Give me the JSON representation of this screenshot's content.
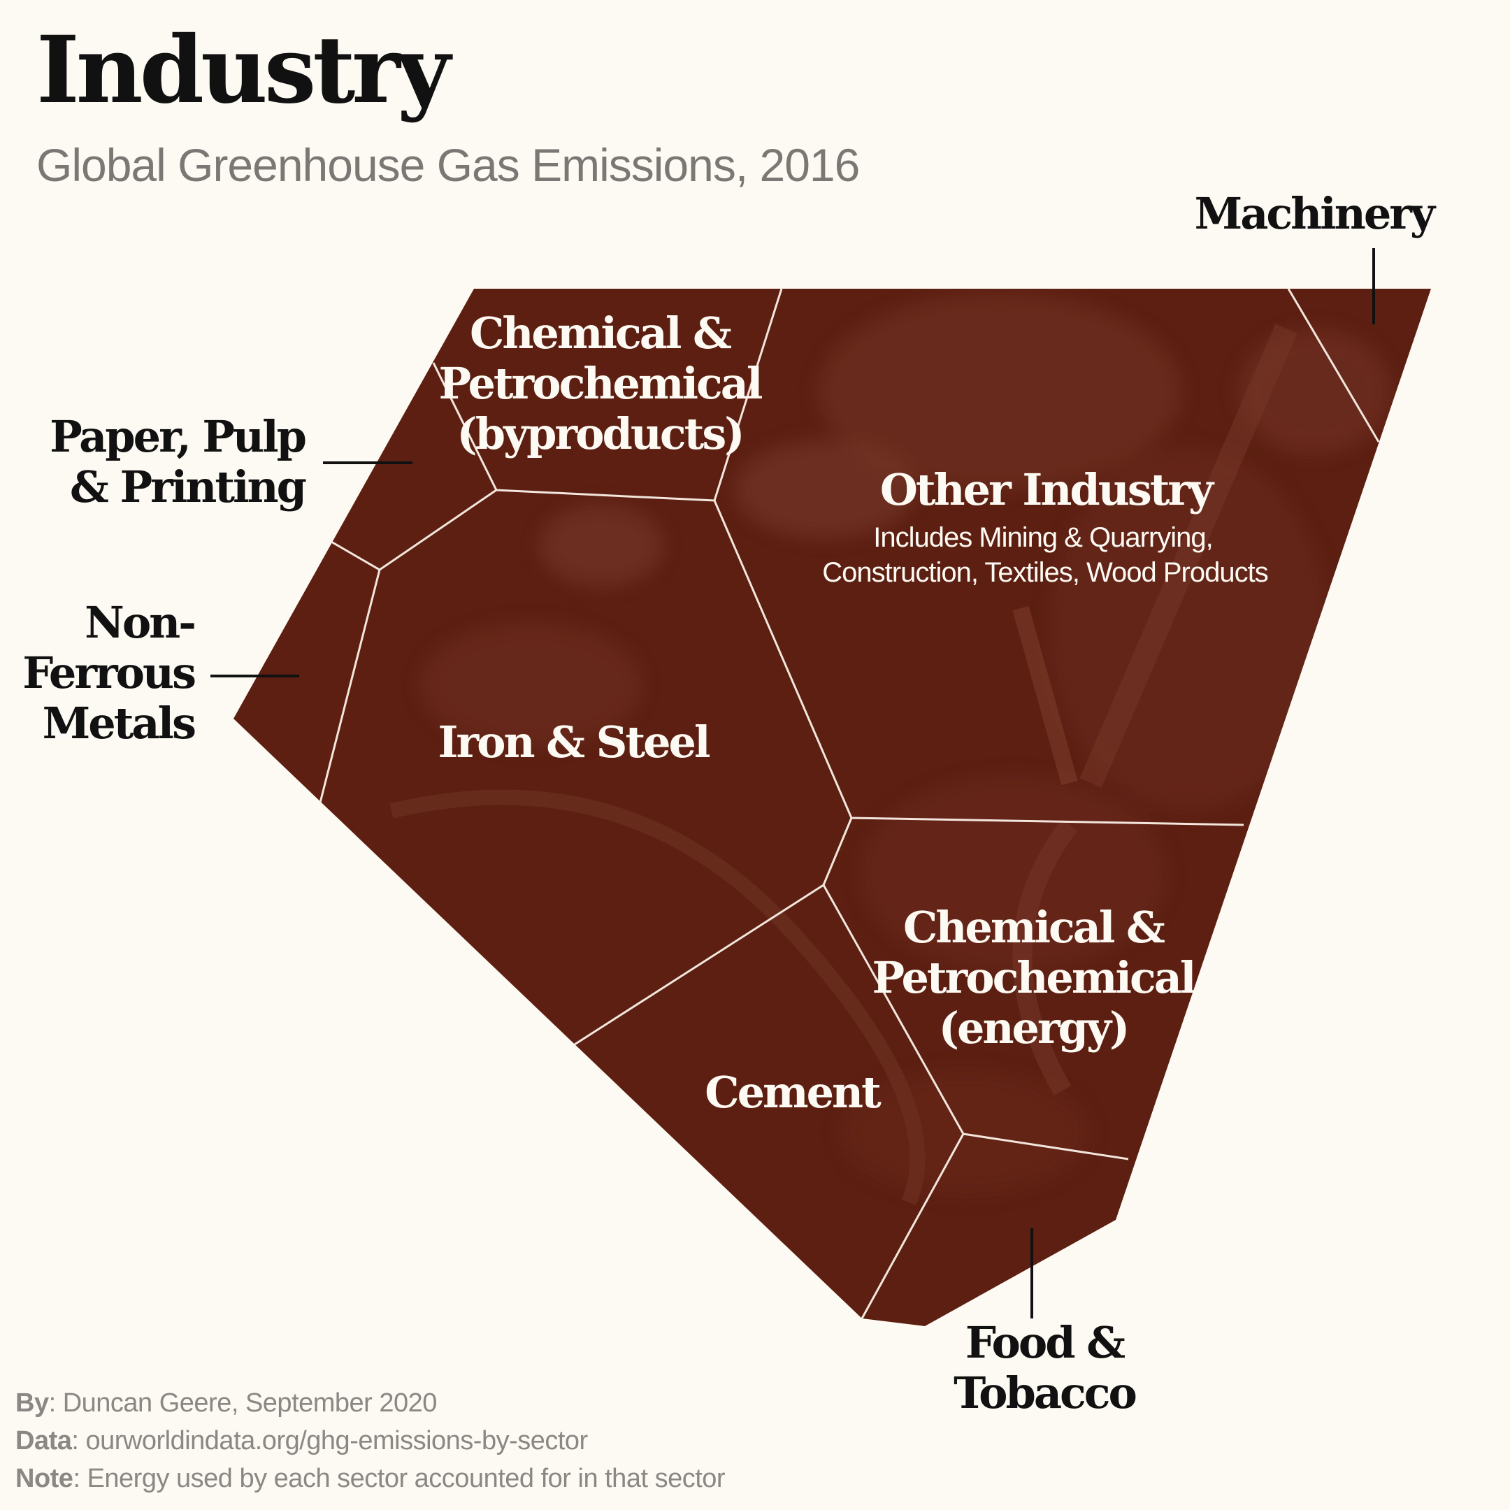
{
  "header": {
    "title": "Industry",
    "subtitle": "Global Greenhouse Gas Emissions, 2016"
  },
  "colors": {
    "background": "#fdfaf3",
    "cell_fill": "#5c1f12",
    "cell_border": "#f3e6dc",
    "text_dark": "#111111",
    "text_muted": "#8a8784"
  },
  "cells": {
    "chem_byproducts": {
      "lines": [
        "Chemical &",
        "Petrochemical",
        "(byproducts)"
      ]
    },
    "other_industry": {
      "title": "Other Industry",
      "note_lines": [
        "Includes Mining & Quarrying,",
        "Construction, Textiles, Wood Products"
      ]
    },
    "iron_steel": {
      "label": "Iron & Steel"
    },
    "chem_energy": {
      "lines": [
        "Chemical &",
        "Petrochemical",
        "(energy)"
      ]
    },
    "cement": {
      "label": "Cement"
    },
    "machinery": {
      "label": "Machinery"
    },
    "paper": {
      "lines": [
        "Paper, Pulp",
        "& Printing"
      ]
    },
    "non_ferrous": {
      "lines": [
        "Non-",
        "Ferrous",
        "Metals"
      ]
    },
    "food_tobacco": {
      "lines": [
        "Food &",
        "Tobacco"
      ]
    }
  },
  "credits": {
    "by_label": "By",
    "by_value": ": Duncan Geere, September 2020",
    "data_label": "Data",
    "data_value": ": ourworldindata.org/ghg-emissions-by-sector",
    "note_label": "Note",
    "note_value": ": Energy used by each sector accounted for in that sector"
  }
}
